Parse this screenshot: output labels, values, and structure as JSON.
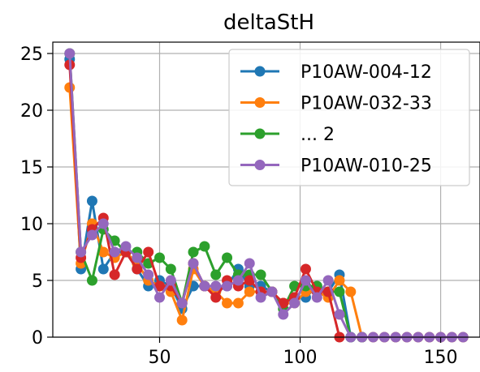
{
  "chart_data": {
    "type": "line",
    "title": "deltaStH",
    "xlabel": "",
    "ylabel": "",
    "xlim": [
      12,
      164
    ],
    "ylim": [
      0,
      26
    ],
    "xticks": [
      50,
      100,
      150
    ],
    "yticks": [
      0,
      5,
      10,
      15,
      20,
      25
    ],
    "grid": true,
    "legend_position": "top-right",
    "legend": [
      "P10AW-004-12",
      "P10AW-032-33",
      "... 2",
      "P10AW-010-25"
    ],
    "series": [
      {
        "name": "P10AW-004-12",
        "color": "#1f77b4",
        "x": [
          18,
          22,
          26,
          30,
          34,
          38,
          42,
          46,
          50,
          54,
          58,
          62,
          66,
          70,
          74,
          78,
          82,
          86,
          90,
          94,
          98,
          102,
          106,
          110,
          114,
          118,
          122
        ],
        "y": [
          24.5,
          6,
          12,
          6,
          7.5,
          7.5,
          6,
          4.5,
          5,
          4.5,
          2.5,
          4.5,
          4.5,
          4,
          4.5,
          6,
          4.5,
          4.5,
          4,
          3,
          3.5,
          3.5,
          4.5,
          4,
          5.5,
          0,
          0
        ]
      },
      {
        "name": "P10AW-032-33",
        "color": "#ff7f0e",
        "x": [
          18,
          22,
          26,
          30,
          34,
          38,
          42,
          46,
          50,
          54,
          58,
          62,
          66,
          70,
          74,
          78,
          82,
          86,
          90,
          94,
          98,
          102,
          106,
          110,
          114,
          118,
          122,
          126,
          130,
          134,
          138,
          142,
          146,
          150,
          154,
          158
        ],
        "y": [
          22,
          6.5,
          10,
          7.5,
          7,
          7.5,
          6.5,
          5,
          4.5,
          4,
          1.5,
          6,
          4.5,
          4,
          3,
          3,
          4,
          4,
          4,
          3,
          3,
          4,
          4,
          3.5,
          5,
          4,
          0,
          0,
          0,
          0,
          0,
          0,
          0,
          0,
          0,
          0
        ]
      },
      {
        "name": "... 2",
        "color": "#2ca02c",
        "x": [
          18,
          22,
          26,
          30,
          34,
          38,
          42,
          46,
          50,
          54,
          58,
          62,
          66,
          70,
          74,
          78,
          82,
          86,
          90,
          94,
          98,
          102,
          106,
          110,
          114,
          118,
          122
        ],
        "y": [
          25,
          7.5,
          5,
          9.5,
          8.5,
          7.5,
          7.5,
          6.5,
          7,
          6,
          3,
          7.5,
          8,
          5.5,
          7,
          5.5,
          5.5,
          5.5,
          4,
          2.5,
          4.5,
          4.5,
          4.5,
          4,
          4,
          0,
          0
        ]
      },
      {
        "name": "",
        "color": "#d62728",
        "x": [
          18,
          22,
          26,
          30,
          34,
          38,
          42,
          46,
          50,
          54,
          58,
          62,
          66,
          70,
          74,
          78,
          82,
          86,
          90,
          94,
          98,
          102,
          106,
          110,
          114
        ],
        "y": [
          24,
          7,
          9.5,
          10.5,
          5.5,
          7.5,
          6,
          7.5,
          4.5,
          4.5,
          3,
          6.5,
          4.5,
          3.5,
          5,
          4.5,
          5,
          4,
          4,
          3,
          3.5,
          6,
          4,
          4,
          0
        ]
      },
      {
        "name": "P10AW-010-25",
        "color": "#9467bd",
        "x": [
          18,
          22,
          26,
          30,
          34,
          38,
          42,
          46,
          50,
          54,
          58,
          62,
          66,
          70,
          74,
          78,
          82,
          86,
          90,
          94,
          98,
          102,
          106,
          110,
          114,
          118,
          122,
          126,
          130,
          134,
          138,
          142,
          146,
          150,
          154,
          158
        ],
        "y": [
          25,
          7.5,
          9,
          10,
          7.5,
          8,
          7,
          5.5,
          3.5,
          5,
          3,
          6.5,
          4.5,
          4.5,
          4.5,
          5,
          6.5,
          3.5,
          4,
          2,
          3,
          5,
          3.5,
          5,
          2,
          0,
          0,
          0,
          0,
          0,
          0,
          0,
          0,
          0,
          0,
          0
        ]
      }
    ]
  }
}
